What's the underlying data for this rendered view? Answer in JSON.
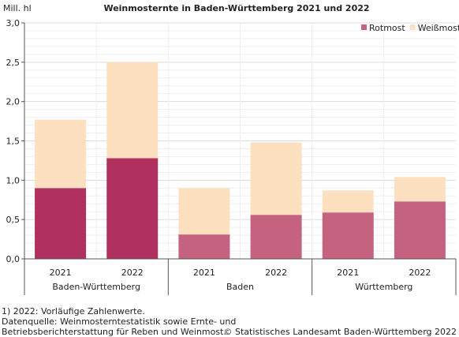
{
  "chart_data": {
    "type": "bar",
    "stacked": true,
    "title": "Weinmosternte in Baden-Württemberg 2021 und 2022",
    "ylabel": "Mill. hl",
    "ylim": [
      0,
      3.0
    ],
    "yticks": [
      "0,0",
      "0,5",
      "1,0",
      "1,5",
      "2,0",
      "2,5",
      "3,0"
    ],
    "ytick_values": [
      0,
      0.5,
      1.0,
      1.5,
      2.0,
      2.5,
      3.0
    ],
    "grid": true,
    "legend_position": "top-right",
    "groups": [
      {
        "label": "Baden-Württemberg",
        "categories": [
          "2021",
          "2022"
        ]
      },
      {
        "label": "Baden",
        "categories": [
          "2021",
          "2022"
        ]
      },
      {
        "label": "Württemberg",
        "categories": [
          "2021",
          "2022"
        ]
      }
    ],
    "series": [
      {
        "name": "Rotmost",
        "values": [
          0.9,
          1.28,
          0.31,
          0.56,
          0.59,
          0.73
        ],
        "colors": [
          "#b03060",
          "#b03060",
          "#c4627f",
          "#c4627f",
          "#c4627f",
          "#c4627f"
        ]
      },
      {
        "name": "Weißmost",
        "values": [
          0.87,
          1.22,
          0.59,
          0.92,
          0.28,
          0.31
        ],
        "colors": [
          "#fde0c0",
          "#fde0c0",
          "#fde0c0",
          "#fde0c0",
          "#fde0c0",
          "#fde0c0"
        ]
      }
    ],
    "legend_colors": {
      "Rotmost": "#c4627f",
      "Weißmost": "#fde0c0"
    }
  },
  "footnotes": [
    "1) 2022: Vorläufige Zahlenwerte.",
    "Datenquelle: Weinmosterntestatistik sowie Ernte- und",
    "Betriebsberichterstattung für Reben und Weinmost."
  ],
  "copyright": "© Statistisches Landesamt Baden-Württemberg 2022"
}
